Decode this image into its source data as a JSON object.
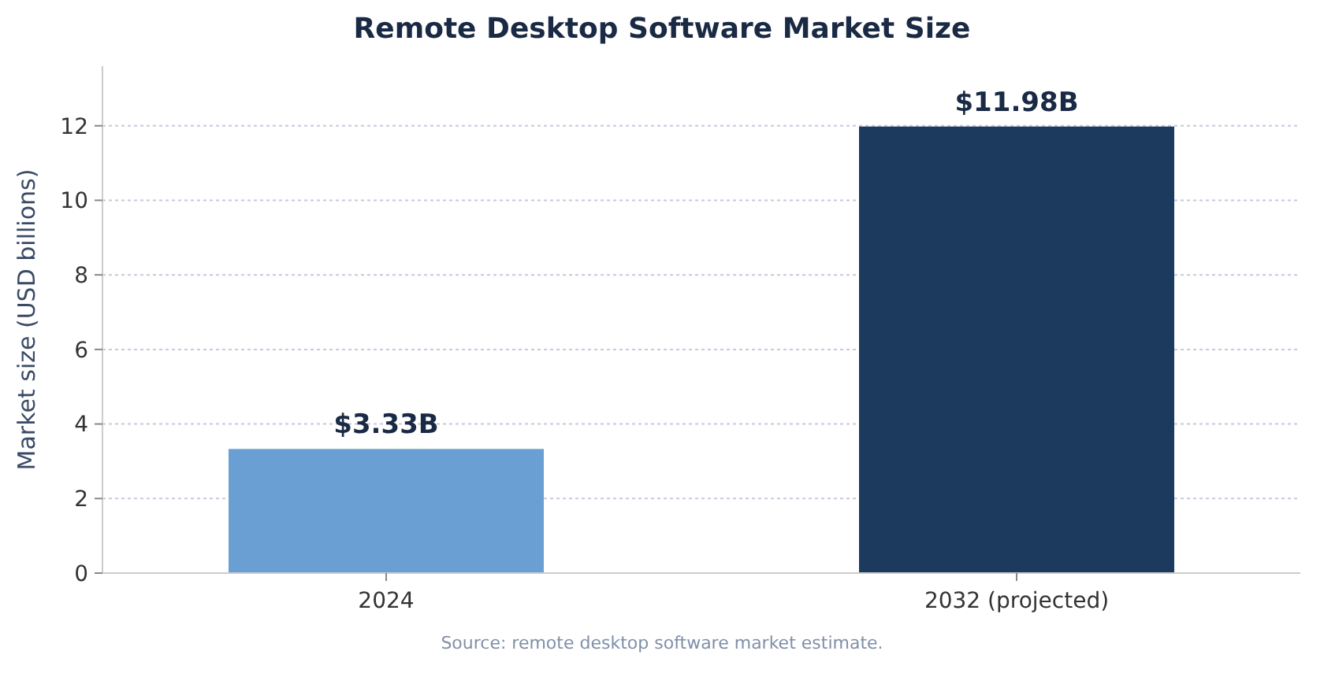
{
  "chart_data": {
    "type": "bar",
    "title": "Remote Desktop Software Market Size",
    "ylabel": "Market size (USD billions)",
    "categories": [
      "2024",
      "2032 (projected)"
    ],
    "values": [
      3.33,
      11.98
    ],
    "colors": [
      "#6a9fd4",
      "#1c3a5e"
    ],
    "value_labels": [
      "$3.33B",
      "$11.98B"
    ],
    "ylim": [
      0,
      13.6
    ],
    "yticks": [
      0,
      2,
      4,
      6,
      8,
      10,
      12
    ],
    "grid": "y",
    "annotations": [
      "Source: remote desktop software market estimate."
    ]
  }
}
